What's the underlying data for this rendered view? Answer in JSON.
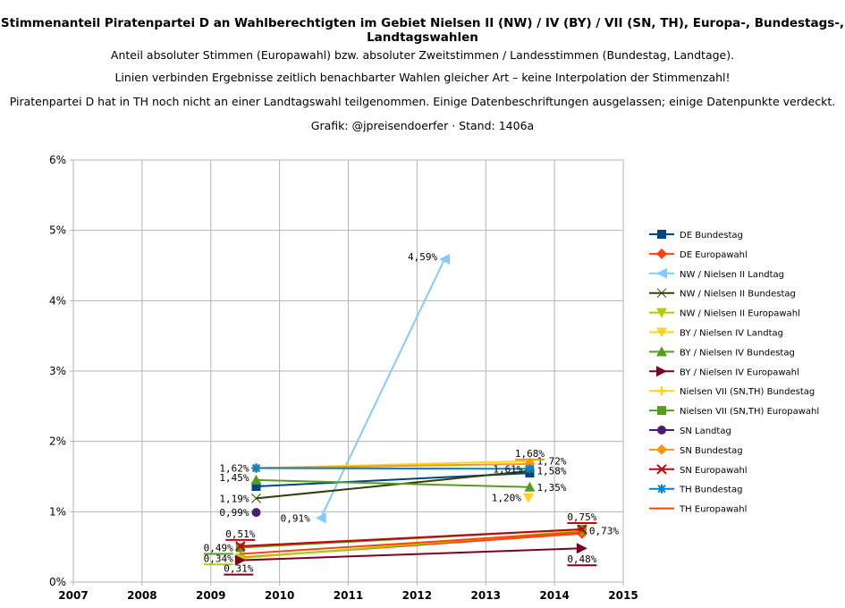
{
  "header": {
    "title": "Stimmenanteil Piratenpartei D an Wahlberechtigten im Gebiet Nielsen II (NW) / IV (BY) / VII (SN, TH), Europa-, Bundestags-, Landtagswahlen",
    "subtitle_lines": [
      "Anteil absoluter Stimmen (Europawahl) bzw. absoluter Zweitstimmen / Landesstimmen (Bundestag, Landtage).",
      "Linien verbinden Ergebnisse zeitlich benachbarter Wahlen gleicher Art – keine Interpolation der Stimmenzahl!",
      "Piratenpartei D hat in TH noch nicht an einer Landtagswahl teilgenommen. Einige Datenbeschriftungen ausgelassen; einige Datenpunkte verdeckt.",
      "Grafik: @jpreisendoerfer · Stand: 1406a"
    ]
  },
  "chart_data": {
    "type": "line",
    "title": "Stimmenanteil Piratenpartei D an Wahlberechtigten im Gebiet Nielsen II (NW) / IV (BY) / VII (SN, TH), Europa-, Bundestags-, Landtagswahlen",
    "xlim": [
      2007,
      2015
    ],
    "ylim": [
      0,
      6
    ],
    "x_ticks": [
      "2007",
      "2008",
      "2009",
      "2010",
      "2011",
      "2012",
      "2013",
      "2014",
      "2015"
    ],
    "y_ticks": [
      "0%",
      "1%",
      "2%",
      "3%",
      "4%",
      "5%",
      "6%"
    ],
    "grid": true,
    "legend_position": "right",
    "series": [
      {
        "name": "DE Bundestag",
        "color": "#004586",
        "marker": "square",
        "x": [
          2009.66,
          2013.64
        ],
        "y": [
          1.36,
          1.55
        ],
        "labels": [
          "",
          ""
        ]
      },
      {
        "name": "DE Europawahl",
        "color": "#ff420e",
        "marker": "diamond",
        "x": [
          2009.43,
          2014.4
        ],
        "y": [
          0.35,
          0.69
        ],
        "labels": [
          "",
          ""
        ]
      },
      {
        "name": "NW / Nielsen II Landtag",
        "color": "#83caff",
        "marker": "tri-left",
        "x": [
          2010.6,
          2012.4
        ],
        "y": [
          0.91,
          4.59
        ],
        "labels": [
          "0,91%",
          "4,59%"
        ]
      },
      {
        "name": "NW / Nielsen II Bundestag",
        "color": "#314004",
        "marker": "bowtie",
        "x": [
          2009.66,
          2013.64
        ],
        "y": [
          1.19,
          1.58
        ],
        "labels": [
          "1,19%",
          "1,58%"
        ]
      },
      {
        "name": "NW / Nielsen II Europawahl",
        "color": "#aecf00",
        "marker": "tri-down",
        "x": [
          2009.43,
          2014.4
        ],
        "y": [
          0.34,
          0.73
        ],
        "labels": [
          "0,34%",
          "0,73%"
        ]
      },
      {
        "name": "BY / Nielsen IV Landtag",
        "color": "#ffd320",
        "marker": "tri-down",
        "x": [
          2013.62
        ],
        "y": [
          1.2
        ],
        "labels": [
          "1,20%"
        ]
      },
      {
        "name": "BY / Nielsen IV Bundestag",
        "color": "#579d1c",
        "marker": "tri-up",
        "x": [
          2009.66,
          2013.64
        ],
        "y": [
          1.45,
          1.35
        ],
        "labels": [
          "1,45%",
          "1,35%"
        ]
      },
      {
        "name": "BY / Nielsen IV Europawahl",
        "color": "#7e0021",
        "marker": "tri-right",
        "x": [
          2009.43,
          2014.4
        ],
        "y": [
          0.31,
          0.48
        ],
        "labels": [
          "0,31%",
          "0,48%"
        ]
      },
      {
        "name": "Nielsen VII (SN,TH) Bundestag",
        "color": "#ffd320",
        "marker": "plus",
        "x": [
          2009.66,
          2013.64
        ],
        "y": [
          1.62,
          1.72
        ],
        "labels": [
          "",
          "1,72%"
        ]
      },
      {
        "name": "Nielsen VII (SN,TH) Europawahl",
        "color": "#579d1c",
        "marker": "square",
        "x": [
          2009.43,
          2014.4
        ],
        "y": [
          0.49,
          0.75
        ],
        "labels": [
          "0,49%",
          ""
        ]
      },
      {
        "name": "SN Landtag",
        "color": "#4b1f6f",
        "marker": "circle",
        "x": [
          2009.66
        ],
        "y": [
          0.99
        ],
        "labels": [
          "0,99%"
        ]
      },
      {
        "name": "SN Bundestag",
        "color": "#ff950e",
        "marker": "diamond",
        "x": [
          2009.66,
          2013.64
        ],
        "y": [
          1.62,
          1.68
        ],
        "labels": [
          "",
          "1,68%"
        ]
      },
      {
        "name": "SN Europawahl",
        "color": "#c5000b",
        "marker": "cross",
        "x": [
          2009.43,
          2014.4
        ],
        "y": [
          0.51,
          0.75
        ],
        "labels": [
          "0,51%",
          "0,75%"
        ]
      },
      {
        "name": "TH Bundestag",
        "color": "#0084d1",
        "marker": "star",
        "x": [
          2009.66,
          2013.64
        ],
        "y": [
          1.62,
          1.61
        ],
        "labels": [
          "1,62%",
          "1,61%"
        ]
      },
      {
        "name": "TH Europawahl",
        "color": "#ff420e",
        "marker": "none",
        "x": [
          2009.43,
          2014.4
        ],
        "y": [
          0.4,
          0.71
        ],
        "labels": [
          "",
          ""
        ]
      }
    ]
  }
}
